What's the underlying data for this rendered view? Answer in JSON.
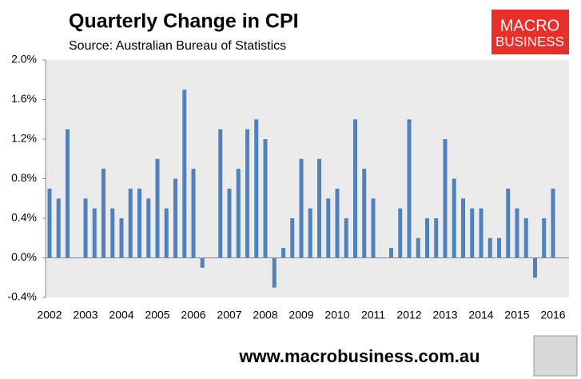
{
  "chart_data": {
    "type": "bar",
    "title": "Quarterly Change in CPI",
    "subtitle": "Source: Australian Bureau of Statistics",
    "logo": [
      "MACRO",
      "BUSINESS"
    ],
    "annotation": "www.macrobusiness.com.au",
    "categories": [
      "2002",
      null,
      null,
      null,
      "2003",
      null,
      null,
      null,
      "2004",
      null,
      null,
      null,
      "2005",
      null,
      null,
      null,
      "2006",
      null,
      null,
      null,
      "2007",
      null,
      null,
      null,
      "2008",
      null,
      null,
      null,
      "2009",
      null,
      null,
      null,
      "2010",
      null,
      null,
      null,
      "2011",
      null,
      null,
      null,
      "2012",
      null,
      null,
      null,
      "2013",
      null,
      null,
      null,
      "2014",
      null,
      null,
      null,
      "2015",
      null,
      null,
      null,
      "2016"
    ],
    "values": [
      0.7,
      0.6,
      1.3,
      0.0,
      0.6,
      0.5,
      0.9,
      0.5,
      0.4,
      0.7,
      0.7,
      0.6,
      1.0,
      0.5,
      0.8,
      1.7,
      0.9,
      -0.1,
      0.0,
      1.3,
      0.7,
      0.9,
      1.3,
      1.4,
      1.2,
      -0.3,
      0.1,
      0.4,
      1.0,
      0.5,
      1.0,
      0.6,
      0.7,
      0.4,
      1.4,
      0.9,
      0.6,
      0.0,
      0.1,
      0.5,
      1.4,
      0.2,
      0.4,
      0.4,
      1.2,
      0.8,
      0.6,
      0.5,
      0.5,
      0.2,
      0.2,
      0.7,
      0.5,
      0.4,
      -0.2,
      0.4,
      0.7
    ],
    "color": "#4f81bd",
    "ylim": [
      -0.4,
      2.0
    ],
    "yticks": [
      {
        "value": -0.4,
        "label": "-0.4%"
      },
      {
        "value": 0.0,
        "label": "0.0%"
      },
      {
        "value": 0.4,
        "label": "0.4%"
      },
      {
        "value": 0.8,
        "label": "0.8%"
      },
      {
        "value": 1.2,
        "label": "1.2%"
      },
      {
        "value": 1.6,
        "label": "1.6%"
      },
      {
        "value": 2.0,
        "label": "2.0%"
      }
    ],
    "grid": false
  }
}
